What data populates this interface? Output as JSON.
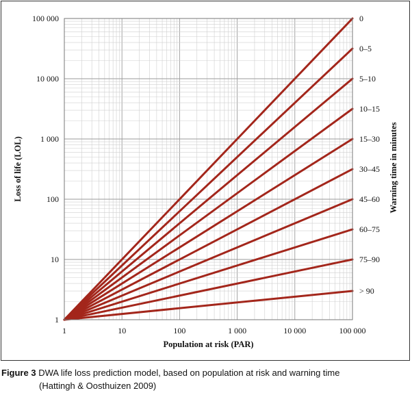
{
  "chart_data": {
    "type": "line",
    "title": "",
    "xlabel": "Population at risk (PAR)",
    "ylabel": "Loss of life (LOL)",
    "right_label": "Warning time in minutes",
    "xscale": "log",
    "yscale": "log",
    "xlim": [
      1,
      100000
    ],
    "ylim": [
      1,
      100000
    ],
    "grid": true,
    "x_ticks": [
      1,
      10,
      100,
      1000,
      10000,
      100000
    ],
    "x_tick_labels": [
      "1",
      "10",
      "100",
      "1 000",
      "10 000",
      "100 000"
    ],
    "y_ticks": [
      1,
      10,
      100,
      1000,
      10000,
      100000
    ],
    "y_tick_labels": [
      "1",
      "10",
      "100",
      "1 000",
      "10 000",
      "100 000"
    ],
    "line_color": "#a3261b",
    "series": [
      {
        "name": "0",
        "x": [
          1,
          100000
        ],
        "y": [
          1,
          100000
        ]
      },
      {
        "name": "0–5",
        "x": [
          1,
          100000
        ],
        "y": [
          1,
          31623
        ]
      },
      {
        "name": "5–10",
        "x": [
          1,
          100000
        ],
        "y": [
          1,
          10000
        ]
      },
      {
        "name": "10–15",
        "x": [
          1,
          100000
        ],
        "y": [
          1,
          3162
        ]
      },
      {
        "name": "15–30",
        "x": [
          1,
          100000
        ],
        "y": [
          1,
          1000
        ]
      },
      {
        "name": "30–45",
        "x": [
          1,
          100000
        ],
        "y": [
          1,
          316
        ]
      },
      {
        "name": "45–60",
        "x": [
          1,
          100000
        ],
        "y": [
          1,
          100
        ]
      },
      {
        "name": "60–75",
        "x": [
          1,
          100000
        ],
        "y": [
          1,
          31.6
        ]
      },
      {
        "name": "75–90",
        "x": [
          1,
          100000
        ],
        "y": [
          1,
          10
        ]
      },
      {
        "name": "> 90",
        "x": [
          1,
          100000
        ],
        "y": [
          1,
          3
        ]
      }
    ]
  },
  "caption": {
    "label": "Figure 3",
    "text": " DWA life loss prediction model, based on population at risk and warning time",
    "source": "(Hattingh & Oosthuizen 2009)"
  }
}
